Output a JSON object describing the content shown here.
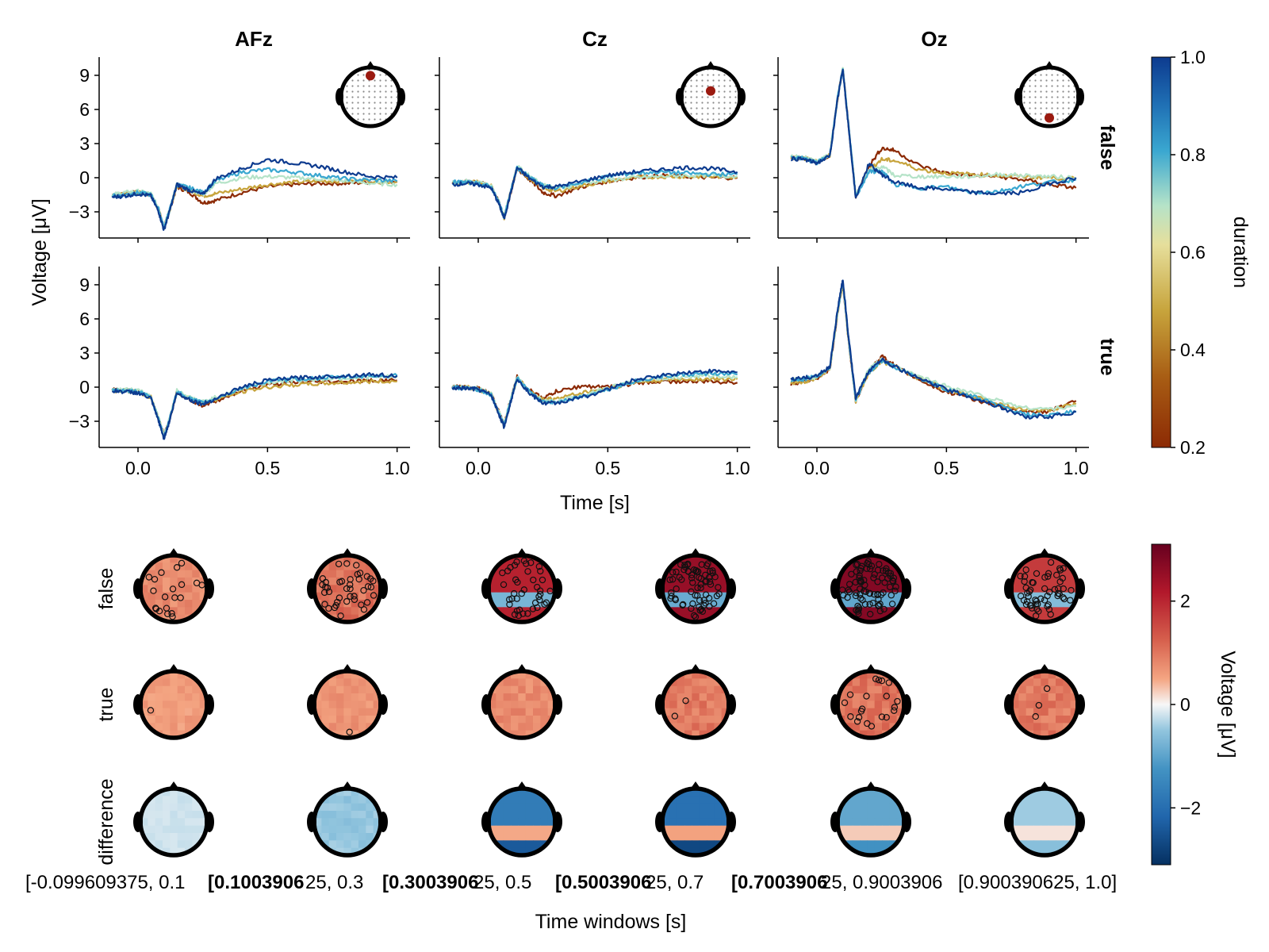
{
  "chart_data": [
    {
      "type": "line",
      "panel": "erp-grid",
      "columns": [
        "AFz",
        "Cz",
        "Oz"
      ],
      "rows": [
        "false",
        "true"
      ],
      "xlabel": "Time [s]",
      "ylabel": "Voltage [μV]",
      "xlim": [
        -0.15,
        1.05
      ],
      "ylim": [
        -5.3,
        10.6
      ],
      "x_ticks": [
        0.0,
        0.5,
        1.0
      ],
      "x_tick_labels": [
        "0.0",
        "0.5",
        "1.0"
      ],
      "y_ticks": [
        -3,
        0,
        3,
        6,
        9
      ],
      "y_tick_labels": [
        "−3",
        "0",
        "3",
        "6",
        "9"
      ],
      "x": [
        -0.1,
        -0.05,
        0.0,
        0.05,
        0.08,
        0.1,
        0.12,
        0.15,
        0.2,
        0.25,
        0.3,
        0.4,
        0.5,
        0.6,
        0.7,
        0.8,
        0.9,
        1.0
      ],
      "colorbar": {
        "label": "duration",
        "range": [
          0.2,
          1.0
        ],
        "ticks": [
          "0.2",
          "0.4",
          "0.6",
          "0.8",
          "1.0"
        ]
      },
      "series_colors": {
        "0.2": "#8c2a04",
        "0.4": "#c7a43c",
        "0.6": "#b5e3c8",
        "0.8": "#3aa7d0",
        "1.0": "#0d3b8f"
      },
      "series": [
        {
          "channel": "AFz",
          "row": "false",
          "duration": 0.2,
          "values": [
            -1.5,
            -1.4,
            -1.3,
            -1.5,
            -2.8,
            -4.4,
            -3.0,
            -0.8,
            -1.3,
            -2.2,
            -2.0,
            -1.3,
            -0.8,
            -0.6,
            -0.5,
            -0.5,
            -0.4,
            -0.3
          ]
        },
        {
          "channel": "AFz",
          "row": "false",
          "duration": 0.4,
          "values": [
            -1.5,
            -1.4,
            -1.3,
            -1.5,
            -2.8,
            -4.4,
            -3.0,
            -0.7,
            -1.1,
            -1.6,
            -1.4,
            -1.0,
            -0.6,
            -0.4,
            -0.3,
            -0.3,
            -0.3,
            -0.4
          ]
        },
        {
          "channel": "AFz",
          "row": "false",
          "duration": 0.6,
          "values": [
            -1.5,
            -1.3,
            -1.2,
            -1.4,
            -2.7,
            -4.3,
            -2.9,
            -0.6,
            -1.0,
            -1.5,
            -0.5,
            0.0,
            0.1,
            0.0,
            -0.1,
            -0.3,
            -0.5,
            -0.6
          ]
        },
        {
          "channel": "AFz",
          "row": "false",
          "duration": 0.8,
          "values": [
            -1.6,
            -1.5,
            -1.3,
            -1.5,
            -2.8,
            -4.4,
            -3.0,
            -0.6,
            -0.9,
            -1.3,
            -0.3,
            0.5,
            0.7,
            0.5,
            0.2,
            -0.1,
            -0.2,
            -0.3
          ]
        },
        {
          "channel": "AFz",
          "row": "false",
          "duration": 1.0,
          "values": [
            -1.7,
            -1.6,
            -1.4,
            -1.6,
            -3.0,
            -4.6,
            -3.1,
            -0.6,
            -1.1,
            -1.5,
            -0.1,
            0.8,
            1.6,
            1.3,
            1.0,
            0.5,
            0.1,
            0.0
          ]
        },
        {
          "channel": "Cz",
          "row": "false",
          "duration": 0.2,
          "values": [
            -0.5,
            -0.4,
            -0.4,
            -0.7,
            -2.2,
            -3.5,
            -1.8,
            0.8,
            -0.2,
            -1.3,
            -1.6,
            -0.8,
            -0.3,
            0.0,
            0.2,
            0.1,
            0.0,
            0.0
          ]
        },
        {
          "channel": "Cz",
          "row": "false",
          "duration": 0.4,
          "values": [
            -0.5,
            -0.4,
            -0.4,
            -0.7,
            -2.2,
            -3.5,
            -1.7,
            0.9,
            -0.1,
            -0.9,
            -1.2,
            -0.7,
            -0.3,
            0.0,
            0.1,
            0.1,
            0.1,
            0.1
          ]
        },
        {
          "channel": "Cz",
          "row": "false",
          "duration": 0.6,
          "values": [
            -0.4,
            -0.3,
            -0.4,
            -0.7,
            -2.1,
            -3.4,
            -1.6,
            1.0,
            0.1,
            -0.6,
            -1.0,
            -0.5,
            -0.2,
            0.0,
            0.1,
            0.2,
            0.2,
            0.1
          ]
        },
        {
          "channel": "Cz",
          "row": "false",
          "duration": 0.8,
          "values": [
            -0.4,
            -0.4,
            -0.5,
            -0.8,
            -2.2,
            -3.5,
            -1.7,
            0.9,
            0.0,
            -0.7,
            -0.9,
            -0.4,
            0.1,
            0.4,
            0.5,
            0.4,
            0.3,
            0.3
          ]
        },
        {
          "channel": "Cz",
          "row": "false",
          "duration": 1.0,
          "values": [
            -0.6,
            -0.5,
            -0.6,
            -0.9,
            -2.3,
            -3.6,
            -1.8,
            0.9,
            -0.1,
            -0.8,
            -0.8,
            -0.3,
            0.2,
            0.5,
            0.7,
            0.9,
            0.8,
            0.5
          ]
        },
        {
          "channel": "Oz",
          "row": "false",
          "duration": 0.2,
          "values": [
            1.8,
            1.7,
            1.4,
            2.0,
            7.0,
            9.6,
            5.0,
            -1.7,
            1.0,
            2.6,
            2.4,
            1.0,
            0.4,
            0.2,
            0.1,
            -0.2,
            -0.6,
            -0.9
          ]
        },
        {
          "channel": "Oz",
          "row": "false",
          "duration": 0.4,
          "values": [
            1.8,
            1.7,
            1.4,
            2.0,
            7.0,
            9.6,
            5.0,
            -1.6,
            0.7,
            1.6,
            1.5,
            0.7,
            0.4,
            0.3,
            0.2,
            0.1,
            0.0,
            -0.1
          ]
        },
        {
          "channel": "Oz",
          "row": "false",
          "duration": 0.6,
          "values": [
            1.9,
            1.8,
            1.4,
            2.0,
            7.1,
            9.7,
            5.1,
            -1.6,
            0.6,
            1.0,
            0.2,
            0.1,
            0.1,
            0.1,
            0.3,
            0.2,
            0.1,
            0.0
          ]
        },
        {
          "channel": "Oz",
          "row": "false",
          "duration": 0.8,
          "values": [
            1.8,
            1.7,
            1.3,
            2.0,
            7.0,
            9.6,
            5.0,
            -1.7,
            0.5,
            0.6,
            -0.6,
            -0.9,
            -0.8,
            -1.3,
            -1.2,
            -0.7,
            -0.4,
            -0.2
          ]
        },
        {
          "channel": "Oz",
          "row": "false",
          "duration": 1.0,
          "values": [
            1.7,
            1.6,
            1.3,
            1.9,
            6.9,
            9.6,
            4.9,
            -1.8,
            1.2,
            0.3,
            -0.4,
            -0.9,
            -1.0,
            -1.3,
            -1.4,
            -1.3,
            -0.5,
            0.0
          ]
        },
        {
          "channel": "AFz",
          "row": "true",
          "duration": 0.2,
          "values": [
            -0.2,
            -0.3,
            -0.4,
            -0.9,
            -2.8,
            -4.2,
            -3.0,
            -0.4,
            -1.1,
            -1.6,
            -1.2,
            -0.3,
            0.2,
            0.4,
            0.5,
            0.5,
            0.6,
            0.6
          ]
        },
        {
          "channel": "AFz",
          "row": "true",
          "duration": 0.4,
          "values": [
            -0.3,
            -0.3,
            -0.4,
            -0.9,
            -2.8,
            -4.3,
            -3.0,
            -0.4,
            -1.0,
            -1.4,
            -1.1,
            -0.4,
            0.0,
            0.2,
            0.3,
            0.4,
            0.5,
            0.5
          ]
        },
        {
          "channel": "AFz",
          "row": "true",
          "duration": 0.6,
          "values": [
            -0.2,
            -0.2,
            -0.3,
            -0.8,
            -2.7,
            -4.2,
            -2.9,
            -0.3,
            -0.9,
            -1.3,
            -0.9,
            -0.1,
            0.4,
            0.6,
            0.7,
            0.8,
            0.9,
            0.9
          ]
        },
        {
          "channel": "AFz",
          "row": "true",
          "duration": 0.8,
          "values": [
            -0.3,
            -0.3,
            -0.4,
            -0.9,
            -2.9,
            -4.4,
            -3.0,
            -0.4,
            -1.0,
            -1.4,
            -1.0,
            -0.1,
            0.5,
            0.7,
            0.8,
            0.9,
            1.0,
            1.0
          ]
        },
        {
          "channel": "AFz",
          "row": "true",
          "duration": 1.0,
          "values": [
            -0.3,
            -0.4,
            -0.5,
            -1.0,
            -3.0,
            -4.5,
            -3.1,
            -0.5,
            -1.1,
            -1.5,
            -1.0,
            0.0,
            0.6,
            0.8,
            0.9,
            1.0,
            1.1,
            1.0
          ]
        },
        {
          "channel": "Cz",
          "row": "true",
          "duration": 0.2,
          "values": [
            0.0,
            0.0,
            -0.1,
            -0.6,
            -2.2,
            -3.3,
            -1.5,
            0.9,
            -0.3,
            -1.0,
            -0.4,
            0.1,
            0.0,
            0.3,
            0.5,
            0.5,
            0.5,
            0.4
          ]
        },
        {
          "channel": "Cz",
          "row": "true",
          "duration": 0.4,
          "values": [
            0.0,
            0.0,
            -0.2,
            -0.6,
            -2.3,
            -3.4,
            -1.6,
            0.8,
            -0.4,
            -1.1,
            -1.0,
            -0.5,
            -0.1,
            0.4,
            0.6,
            0.7,
            0.7,
            0.7
          ]
        },
        {
          "channel": "Cz",
          "row": "true",
          "duration": 0.6,
          "values": [
            0.0,
            0.0,
            -0.1,
            -0.6,
            -2.2,
            -3.3,
            -1.5,
            0.9,
            -0.5,
            -1.2,
            -1.3,
            -0.7,
            -0.1,
            0.5,
            0.8,
            0.9,
            1.0,
            0.9
          ]
        },
        {
          "channel": "Cz",
          "row": "true",
          "duration": 0.8,
          "values": [
            0.0,
            -0.1,
            -0.2,
            -0.7,
            -2.3,
            -3.4,
            -1.6,
            0.8,
            -0.5,
            -1.3,
            -1.3,
            -0.8,
            -0.2,
            0.5,
            0.9,
            1.1,
            1.2,
            1.1
          ]
        },
        {
          "channel": "Cz",
          "row": "true",
          "duration": 1.0,
          "values": [
            -0.1,
            -0.1,
            -0.2,
            -0.7,
            -2.4,
            -3.5,
            -1.7,
            0.8,
            -0.6,
            -1.4,
            -1.4,
            -0.9,
            -0.2,
            0.6,
            1.0,
            1.3,
            1.4,
            1.3
          ]
        },
        {
          "channel": "Oz",
          "row": "true",
          "duration": 0.2,
          "values": [
            0.3,
            0.5,
            0.8,
            1.6,
            6.5,
            9.2,
            4.5,
            -1.2,
            1.4,
            2.7,
            1.9,
            0.6,
            -0.4,
            -1.0,
            -1.7,
            -2.2,
            -2.1,
            -1.2
          ]
        },
        {
          "channel": "Oz",
          "row": "true",
          "duration": 0.4,
          "values": [
            0.4,
            0.5,
            0.8,
            1.6,
            6.5,
            9.2,
            4.5,
            -1.2,
            1.2,
            2.3,
            1.8,
            0.7,
            -0.2,
            -0.8,
            -1.4,
            -2.0,
            -2.0,
            -1.5
          ]
        },
        {
          "channel": "Oz",
          "row": "true",
          "duration": 0.6,
          "values": [
            0.6,
            0.7,
            0.9,
            1.7,
            6.6,
            9.3,
            4.6,
            -1.1,
            1.6,
            2.4,
            1.8,
            0.9,
            0.1,
            -0.5,
            -1.2,
            -1.8,
            -1.9,
            -1.7
          ]
        },
        {
          "channel": "Oz",
          "row": "true",
          "duration": 0.8,
          "values": [
            0.6,
            0.7,
            1.0,
            1.7,
            6.7,
            9.4,
            4.7,
            -1.1,
            1.3,
            2.3,
            1.8,
            0.7,
            -0.2,
            -0.8,
            -1.6,
            -2.4,
            -2.5,
            -2.1
          ]
        },
        {
          "channel": "Oz",
          "row": "true",
          "duration": 1.0,
          "values": [
            0.7,
            0.8,
            1.0,
            1.8,
            6.8,
            9.5,
            4.8,
            -1.0,
            1.4,
            2.5,
            1.8,
            0.7,
            -0.2,
            -0.9,
            -1.7,
            -2.6,
            -2.6,
            -2.2
          ]
        }
      ]
    },
    {
      "type": "heatmap",
      "panel": "topoplot-grid",
      "rows": [
        "false",
        "true",
        "difference"
      ],
      "xlabel": "Time windows [s]",
      "windows": [
        "[-0.099609375, 0.10039062...",
        "[0.10039062...",
        "[0.300390625...",
        "[0.500390625...",
        "[0.700390625...",
        "[0.900390625, 1.0]"
      ],
      "window_labels": [
        "[-0.099609375, 0.1",
        "[0.1003906",
        "25, 0.3",
        "[0.3003906",
        "25, 0.5",
        "[0.5003906",
        "25, 0.7",
        "[0.7003906",
        "25, 0.9003906",
        "[0.900390625, 1.0]"
      ],
      "colorbar": {
        "label": "Voltage [μV]",
        "range": [
          -3.1,
          3.1
        ],
        "ticks": [
          "−2",
          "0",
          "2"
        ]
      },
      "mean_voltage": [
        [
          0.8,
          1.1,
          1.9,
          2.3,
          2.5,
          1.6
        ],
        [
          0.6,
          0.7,
          0.8,
          1.0,
          1.1,
          1.0
        ],
        [
          -0.2,
          -0.5,
          -1.6,
          -1.8,
          -0.9,
          -0.4
        ]
      ],
      "significant_channel_counts": [
        [
          20,
          40,
          40,
          70,
          80,
          55
        ],
        [
          1,
          1,
          0,
          2,
          20,
          3
        ],
        [
          0,
          0,
          0,
          0,
          0,
          0
        ]
      ]
    }
  ]
}
